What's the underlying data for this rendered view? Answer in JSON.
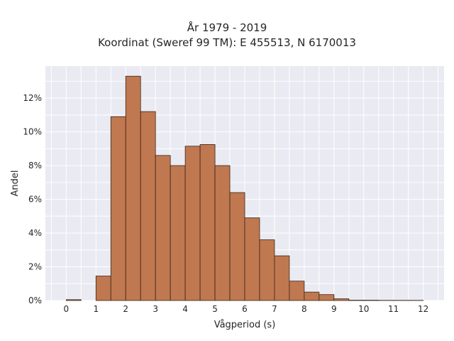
{
  "chart_data": {
    "type": "bar",
    "title": "År 1979 - 2019",
    "subtitle": "Koordinat (Sweref 99 TM): E 455513, N 6170013",
    "xlabel": "Vågperiod (s)",
    "ylabel": "Andel",
    "xlim": [
      -0.7,
      12.7
    ],
    "ylim": [
      0,
      0.139
    ],
    "bin_width": 0.5,
    "bins": [
      {
        "x": 0.0,
        "value": 0.0005
      },
      {
        "x": 1.0,
        "value": 0.0145
      },
      {
        "x": 1.5,
        "value": 0.109
      },
      {
        "x": 2.0,
        "value": 0.133
      },
      {
        "x": 2.5,
        "value": 0.112
      },
      {
        "x": 3.0,
        "value": 0.086
      },
      {
        "x": 3.5,
        "value": 0.08
      },
      {
        "x": 4.0,
        "value": 0.0915
      },
      {
        "x": 4.5,
        "value": 0.0925
      },
      {
        "x": 5.0,
        "value": 0.08
      },
      {
        "x": 5.5,
        "value": 0.064
      },
      {
        "x": 6.0,
        "value": 0.049
      },
      {
        "x": 6.5,
        "value": 0.036
      },
      {
        "x": 7.0,
        "value": 0.0265
      },
      {
        "x": 7.5,
        "value": 0.0115
      },
      {
        "x": 8.0,
        "value": 0.005
      },
      {
        "x": 8.5,
        "value": 0.0035
      },
      {
        "x": 9.0,
        "value": 0.001
      },
      {
        "x": 9.5,
        "value": 0.0002
      },
      {
        "x": 10.0,
        "value": 0.0002
      },
      {
        "x": 10.5,
        "value": 0.0001
      },
      {
        "x": 11.0,
        "value": 0.0001
      },
      {
        "x": 11.5,
        "value": 0.0001
      }
    ],
    "xticks": [
      0,
      1,
      2,
      3,
      4,
      5,
      6,
      7,
      8,
      9,
      10,
      11,
      12
    ],
    "xtick_labels": [
      "0",
      "1",
      "2",
      "3",
      "4",
      "5",
      "6",
      "7",
      "8",
      "9",
      "10",
      "11",
      "12"
    ],
    "yticks": [
      0,
      0.02,
      0.04,
      0.06,
      0.08,
      0.1,
      0.12
    ],
    "ytick_labels": [
      "0%",
      "2%",
      "4%",
      "6%",
      "8%",
      "10%",
      "12%"
    ],
    "grid": true,
    "bar_color": "#c07850",
    "bar_edge_color": "#3a2418",
    "plot_bg": "#eaeaf2",
    "grid_color": "#ffffff"
  }
}
